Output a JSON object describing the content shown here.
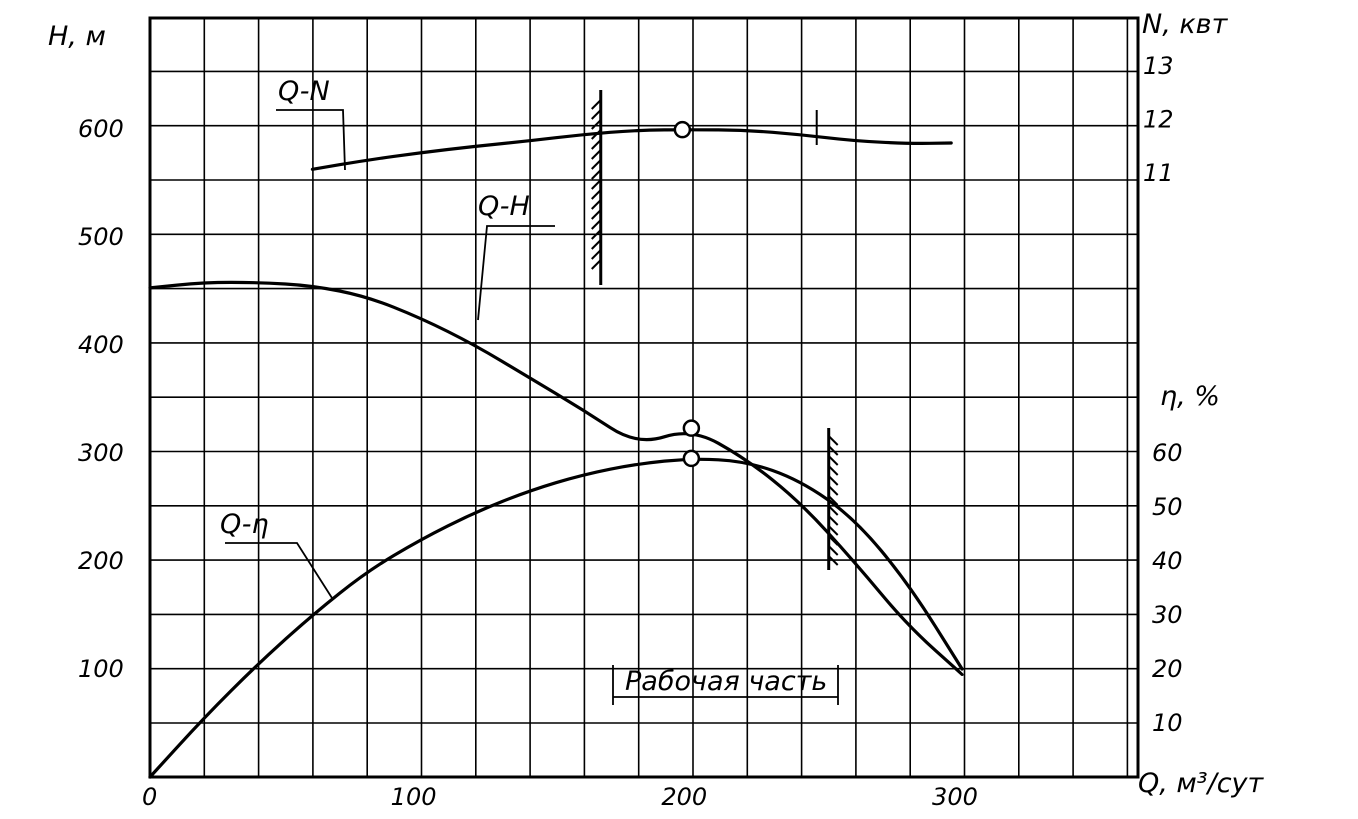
{
  "chart_data": {
    "type": "line",
    "title": "",
    "xlabel": "Q, м³/сут",
    "ylabel_left": "H, м",
    "ylabel_right_power": "N, квт",
    "ylabel_right_eff": "η, %",
    "xlim": [
      0,
      365
    ],
    "ylim_left": [
      0,
      700
    ],
    "x_ticks": [
      "0",
      "100",
      "200",
      "300"
    ],
    "y_ticks_left": [
      "100",
      "200",
      "300",
      "400",
      "500",
      "600"
    ],
    "y_ticks_power": [
      "11",
      "12",
      "13"
    ],
    "y_ticks_eff": [
      "10",
      "20",
      "30",
      "40",
      "50",
      "60"
    ],
    "grid": true,
    "series": [
      {
        "name": "Q-N",
        "axis": "power",
        "x": [
          60,
          80,
          100,
          120,
          140,
          160,
          180,
          200,
          220,
          240,
          260,
          280,
          296
        ],
        "y": [
          11.07,
          11.24,
          11.38,
          11.5,
          11.6,
          11.72,
          11.8,
          11.81,
          11.8,
          11.72,
          11.6,
          11.55,
          11.56
        ]
      },
      {
        "name": "Q-H",
        "axis": "left",
        "x": [
          0,
          20,
          40,
          60,
          80,
          100,
          120,
          140,
          160,
          180,
          200,
          220,
          240,
          260,
          280,
          300
        ],
        "y": [
          453,
          458,
          458,
          455,
          445,
          425,
          400,
          370,
          340,
          307,
          323,
          295,
          255,
          200,
          140,
          95
        ]
      },
      {
        "name": "Q-η",
        "axis": "eff",
        "x": [
          0,
          20,
          40,
          60,
          80,
          100,
          120,
          140,
          160,
          180,
          200,
          220,
          240,
          260,
          280,
          300
        ],
        "y": [
          0,
          11,
          21,
          30,
          38,
          44,
          49,
          53,
          56,
          58,
          59,
          58.5,
          55,
          48,
          36,
          20
        ]
      }
    ],
    "markers": [
      {
        "series": "Q-N",
        "x": 200,
        "y": 11.81
      },
      {
        "series": "Q-H",
        "x": 200,
        "y": 323
      },
      {
        "series": "Q-η",
        "x": 200,
        "y": 59
      }
    ],
    "working_range": {
      "label": "Рабочая часть",
      "x_start": 168,
      "x_end": 250
    }
  }
}
